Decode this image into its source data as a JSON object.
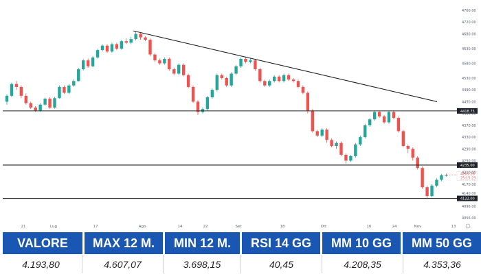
{
  "chart": {
    "price_labels": [
      "4760.00",
      "4720.00",
      "4680.00",
      "4630.00",
      "4580.00",
      "4530.00",
      "4490.00",
      "4450.00",
      "4410.00",
      "4370.00",
      "4330.00",
      "4290.00",
      "4250.00",
      "4210.00",
      "4170.00",
      "4140.00",
      "4096.00",
      "4056.00"
    ],
    "level_labels": [
      "4418.75",
      "4235.00",
      "4122.00"
    ],
    "current_price_label": "4201.26",
    "current_time_label": "25:15:23",
    "date_labels": [
      "21",
      "Lug",
      "17",
      "Ago",
      "14",
      "22",
      "Set",
      "18",
      "Ott",
      "16",
      "24",
      "Nov",
      "13"
    ],
    "colors": {
      "up": "#26a69a",
      "down": "#ef5350",
      "line": "#222222",
      "label_bg": "#1e2329"
    }
  },
  "chart_data": {
    "type": "candlestick",
    "levels": [
      4418.75,
      4235.0,
      4122.0
    ],
    "trendline": [
      [
        0,
        4690
      ],
      [
        86,
        4450
      ]
    ],
    "candles": [
      [
        4450,
        4470,
        4440,
        4475
      ],
      [
        4470,
        4510,
        4465,
        4515
      ],
      [
        4510,
        4500,
        4490,
        4520
      ],
      [
        4500,
        4470,
        4462,
        4505
      ],
      [
        4470,
        4445,
        4440,
        4478
      ],
      [
        4445,
        4430,
        4425,
        4450
      ],
      [
        4430,
        4420,
        4415,
        4435
      ],
      [
        4420,
        4440,
        4416,
        4445
      ],
      [
        4440,
        4460,
        4436,
        4464
      ],
      [
        4460,
        4430,
        4426,
        4465
      ],
      [
        4430,
        4462,
        4426,
        4466
      ],
      [
        4462,
        4500,
        4460,
        4505
      ],
      [
        4500,
        4480,
        4476,
        4505
      ],
      [
        4480,
        4505,
        4476,
        4510
      ],
      [
        4505,
        4520,
        4500,
        4526
      ],
      [
        4520,
        4560,
        4518,
        4565
      ],
      [
        4560,
        4590,
        4556,
        4594
      ],
      [
        4590,
        4570,
        4565,
        4596
      ],
      [
        4570,
        4600,
        4567,
        4604
      ],
      [
        4600,
        4625,
        4596,
        4630
      ],
      [
        4625,
        4640,
        4620,
        4645
      ],
      [
        4640,
        4620,
        4615,
        4645
      ],
      [
        4620,
        4645,
        4616,
        4650
      ],
      [
        4645,
        4630,
        4625,
        4650
      ],
      [
        4630,
        4655,
        4626,
        4660
      ],
      [
        4655,
        4650,
        4645,
        4665
      ],
      [
        4650,
        4662,
        4645,
        4670
      ],
      [
        4662,
        4680,
        4658,
        4690
      ],
      [
        4680,
        4668,
        4660,
        4685
      ],
      [
        4668,
        4660,
        4655,
        4672
      ],
      [
        4660,
        4610,
        4605,
        4664
      ],
      [
        4610,
        4590,
        4585,
        4615
      ],
      [
        4590,
        4580,
        4575,
        4596
      ],
      [
        4580,
        4595,
        4575,
        4600
      ],
      [
        4595,
        4560,
        4555,
        4600
      ],
      [
        4560,
        4545,
        4540,
        4566
      ],
      [
        4545,
        4575,
        4540,
        4580
      ],
      [
        4575,
        4540,
        4536,
        4580
      ],
      [
        4540,
        4500,
        4495,
        4545
      ],
      [
        4500,
        4450,
        4446,
        4505
      ],
      [
        4450,
        4415,
        4405,
        4455
      ],
      [
        4415,
        4425,
        4410,
        4430
      ],
      [
        4425,
        4465,
        4420,
        4470
      ],
      [
        4465,
        4490,
        4460,
        4495
      ],
      [
        4490,
        4540,
        4485,
        4545
      ],
      [
        4540,
        4530,
        4525,
        4545
      ],
      [
        4530,
        4505,
        4500,
        4535
      ],
      [
        4505,
        4545,
        4500,
        4550
      ],
      [
        4545,
        4570,
        4540,
        4575
      ],
      [
        4570,
        4595,
        4565,
        4600
      ],
      [
        4595,
        4585,
        4580,
        4600
      ],
      [
        4585,
        4590,
        4580,
        4596
      ],
      [
        4590,
        4560,
        4555,
        4595
      ],
      [
        4560,
        4520,
        4515,
        4565
      ],
      [
        4520,
        4505,
        4500,
        4525
      ],
      [
        4505,
        4520,
        4500,
        4525
      ],
      [
        4520,
        4535,
        4515,
        4540
      ],
      [
        4535,
        4520,
        4515,
        4540
      ],
      [
        4520,
        4540,
        4515,
        4545
      ],
      [
        4540,
        4525,
        4520,
        4545
      ],
      [
        4525,
        4520,
        4515,
        4530
      ],
      [
        4520,
        4500,
        4495,
        4525
      ],
      [
        4500,
        4480,
        4475,
        4505
      ],
      [
        4480,
        4420,
        4410,
        4485
      ],
      [
        4420,
        4350,
        4345,
        4425
      ],
      [
        4350,
        4335,
        4330,
        4355
      ],
      [
        4335,
        4355,
        4330,
        4360
      ],
      [
        4355,
        4320,
        4310,
        4360
      ],
      [
        4320,
        4300,
        4295,
        4325
      ],
      [
        4300,
        4310,
        4290,
        4315
      ],
      [
        4310,
        4270,
        4265,
        4315
      ],
      [
        4270,
        4250,
        4240,
        4275
      ],
      [
        4250,
        4265,
        4245,
        4270
      ],
      [
        4265,
        4305,
        4260,
        4310
      ],
      [
        4305,
        4330,
        4300,
        4335
      ],
      [
        4330,
        4370,
        4325,
        4375
      ],
      [
        4370,
        4390,
        4365,
        4395
      ],
      [
        4390,
        4415,
        4385,
        4420
      ],
      [
        4415,
        4400,
        4395,
        4420
      ],
      [
        4400,
        4380,
        4375,
        4405
      ],
      [
        4380,
        4415,
        4375,
        4420
      ],
      [
        4415,
        4395,
        4390,
        4420
      ],
      [
        4395,
        4350,
        4345,
        4400
      ],
      [
        4350,
        4300,
        4295,
        4355
      ],
      [
        4300,
        4290,
        4275,
        4305
      ],
      [
        4290,
        4260,
        4250,
        4295
      ],
      [
        4260,
        4225,
        4220,
        4265
      ],
      [
        4225,
        4160,
        4155,
        4230
      ],
      [
        4160,
        4130,
        4122,
        4165
      ],
      [
        4130,
        4165,
        4125,
        4170
      ],
      [
        4165,
        4185,
        4160,
        4190
      ],
      [
        4185,
        4200,
        4180,
        4205
      ],
      [
        4200,
        4201,
        4195,
        4206
      ]
    ]
  },
  "stats": {
    "headers": [
      "VALORE",
      "MAX 12 M.",
      "MIN 12 M.",
      "RSI 14 GG",
      "MM 10 GG",
      "MM 50 GG"
    ],
    "values": [
      "4.193,80",
      "4.607,07",
      "3.698,15",
      "40,45",
      "4.208,35",
      "4.353,36"
    ]
  }
}
